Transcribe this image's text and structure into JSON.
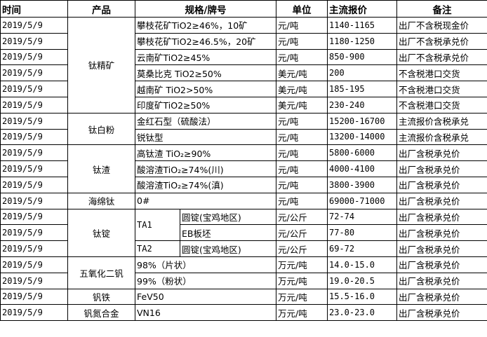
{
  "headers": [
    "时间",
    "产品",
    "规格/牌号",
    "单位",
    "主流报价",
    "备注"
  ],
  "rows": [
    {
      "date": "2019/5/9",
      "spec": "攀枝花矿TiO2≥46%，10矿",
      "unit": "元/吨",
      "price": "1140-1165",
      "note": "出厂不含税现金价"
    },
    {
      "date": "2019/5/9",
      "spec": "攀枝花矿TiO2≥46.5%，20矿",
      "unit": "元/吨",
      "price": "1180-1250",
      "note": "出厂不含税承兑价"
    },
    {
      "date": "2019/5/9",
      "spec": "云南矿TiO2≥45%",
      "unit": "元/吨",
      "price": "850-900",
      "note": "出厂不含税承兑价"
    },
    {
      "date": "2019/5/9",
      "spec": "莫桑比克 TiO2≥50%",
      "unit": "美元/吨",
      "price": "200",
      "note": "不含税港口交货"
    },
    {
      "date": "2019/5/9",
      "spec": "越南矿 TiO2>50%",
      "unit": "美元/吨",
      "price": "185-195",
      "note": "不含税港口交货"
    },
    {
      "date": "2019/5/9",
      "spec": "印度矿TiO2≥50%",
      "unit": "美元/吨",
      "price": "230-240",
      "note": "不含税港口交货"
    },
    {
      "date": "2019/5/9",
      "spec": "金红石型（硫酸法）",
      "unit": "元/吨",
      "price": "15200-16700",
      "note": "主流报价含税承兑"
    },
    {
      "date": "2019/5/9",
      "spec": "锐钛型",
      "unit": "元/吨",
      "price": "13200-14000",
      "note": "主流报价含税承兑"
    },
    {
      "date": "2019/5/9",
      "spec": "高钛渣 TiO₂≥90%",
      "unit": "元/吨",
      "price": "5800-6000",
      "note": "出厂含税承兑价"
    },
    {
      "date": "2019/5/9",
      "spec": "酸溶渣TiO₂≥74%(川)",
      "unit": "元/吨",
      "price": "4000-4100",
      "note": "出厂含税承兑价"
    },
    {
      "date": "2019/5/9",
      "spec": "酸溶渣TiO₂≥74%(滇)",
      "unit": "元/吨",
      "price": "3800-3900",
      "note": "出厂含税承兑价"
    },
    {
      "date": "2019/5/9",
      "spec": "0#",
      "unit": "元/吨",
      "price": "69000-71000",
      "note": "出厂含税承兑价"
    },
    {
      "date": "2019/5/9",
      "spec": "圆锭(宝鸡地区)",
      "unit": "元/公斤",
      "price": "72-74",
      "note": "出厂含税承兑价"
    },
    {
      "date": "2019/5/9",
      "spec": "EB板坯",
      "unit": "元/公斤",
      "price": "77-80",
      "note": "出厂含税承兑价"
    },
    {
      "date": "2019/5/9",
      "spec": "圆锭(宝鸡地区)",
      "unit": "元/公斤",
      "price": "69-72",
      "note": "出厂含税承兑价"
    },
    {
      "date": "2019/5/9",
      "spec": "98%（片状）",
      "unit": "万元/吨",
      "price": "14.0-15.0",
      "note": "出厂含税承兑价"
    },
    {
      "date": "2019/5/9",
      "spec": "99%（粉状）",
      "unit": "万元/吨",
      "price": "19.0-20.5",
      "note": "出厂含税承兑价"
    },
    {
      "date": "2019/5/9",
      "spec": "FeV50",
      "unit": "万元/吨",
      "price": "15.5-16.0",
      "note": "出厂含税承兑价"
    },
    {
      "date": "2019/5/9",
      "spec": "VN16",
      "unit": "万元/吨",
      "price": "23.0-23.0",
      "note": "出厂含税承兑价"
    }
  ],
  "products": [
    "钛精矿",
    "钛白粉",
    "钛渣",
    "海绵钛",
    "钛锭",
    "五氧化二钒",
    "钒铁",
    "钒氮合金"
  ],
  "grades": [
    "TA1",
    "TA2"
  ]
}
